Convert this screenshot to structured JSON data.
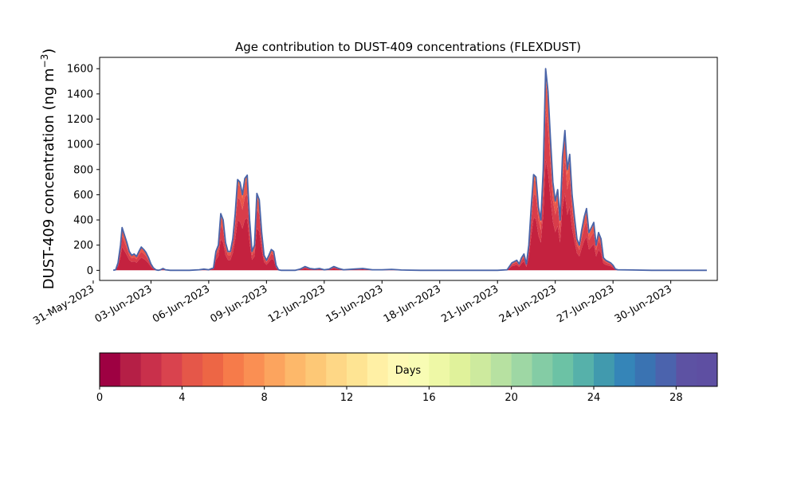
{
  "chart_data": {
    "type": "area",
    "title": "Age contribution to DUST-409 concentrations (FLEXDUST)",
    "ylabel": "DUST-409 concentration (ng m",
    "ylabel_sup": "−3",
    "ylabel_close": ")",
    "xlabel": "",
    "ylim": [
      -80,
      1690
    ],
    "xlim_days": [
      "2023-05-31T08:00",
      "2023-07-02T10:00"
    ],
    "y_ticks": [
      0,
      200,
      400,
      600,
      800,
      1000,
      1200,
      1400,
      1600
    ],
    "x_ticks": [
      "31-May-2023",
      "03-Jun-2023",
      "06-Jun-2023",
      "09-Jun-2023",
      "12-Jun-2023",
      "15-Jun-2023",
      "18-Jun-2023",
      "21-Jun-2023",
      "24-Jun-2023",
      "27-Jun-2023",
      "30-Jun-2023"
    ],
    "x_tick_dates": [
      "2023-05-31",
      "2023-06-03",
      "2023-06-06",
      "2023-06-09",
      "2023-06-12",
      "2023-06-15",
      "2023-06-18",
      "2023-06-21",
      "2023-06-24",
      "2023-06-27",
      "2023-06-30"
    ],
    "line_color": "#4a64a8",
    "series": [
      {
        "total": [
          [
            "2023-06-01T01:00",
            0
          ],
          [
            "2023-06-01T04:00",
            5
          ],
          [
            "2023-06-01T07:00",
            60
          ],
          [
            "2023-06-01T10:00",
            200
          ],
          [
            "2023-06-01T12:00",
            340
          ],
          [
            "2023-06-01T15:00",
            280
          ],
          [
            "2023-06-01T18:00",
            220
          ],
          [
            "2023-06-01T21:00",
            150
          ],
          [
            "2023-06-02T00:00",
            120
          ],
          [
            "2023-06-02T03:00",
            130
          ],
          [
            "2023-06-02T06:00",
            110
          ],
          [
            "2023-06-02T09:00",
            150
          ],
          [
            "2023-06-02T12:00",
            185
          ],
          [
            "2023-06-02T15:00",
            165
          ],
          [
            "2023-06-02T18:00",
            140
          ],
          [
            "2023-06-02T21:00",
            100
          ],
          [
            "2023-06-03T00:00",
            50
          ],
          [
            "2023-06-03T03:00",
            20
          ],
          [
            "2023-06-03T06:00",
            5
          ],
          [
            "2023-06-03T09:00",
            0
          ],
          [
            "2023-06-03T12:00",
            5
          ],
          [
            "2023-06-03T15:00",
            15
          ],
          [
            "2023-06-03T18:00",
            5
          ],
          [
            "2023-06-04T00:00",
            0
          ],
          [
            "2023-06-05T00:00",
            0
          ],
          [
            "2023-06-05T12:00",
            5
          ],
          [
            "2023-06-05T18:00",
            10
          ],
          [
            "2023-06-06T00:00",
            5
          ],
          [
            "2023-06-06T06:00",
            20
          ],
          [
            "2023-06-06T09:00",
            150
          ],
          [
            "2023-06-06T12:00",
            200
          ],
          [
            "2023-06-06T15:00",
            450
          ],
          [
            "2023-06-06T18:00",
            400
          ],
          [
            "2023-06-06T21:00",
            220
          ],
          [
            "2023-06-07T00:00",
            150
          ],
          [
            "2023-06-07T03:00",
            150
          ],
          [
            "2023-06-07T06:00",
            250
          ],
          [
            "2023-06-07T09:00",
            450
          ],
          [
            "2023-06-07T12:00",
            720
          ],
          [
            "2023-06-07T15:00",
            700
          ],
          [
            "2023-06-07T18:00",
            600
          ],
          [
            "2023-06-07T21:00",
            730
          ],
          [
            "2023-06-08T00:00",
            755
          ],
          [
            "2023-06-08T03:00",
            400
          ],
          [
            "2023-06-08T06:00",
            150
          ],
          [
            "2023-06-08T09:00",
            200
          ],
          [
            "2023-06-08T12:00",
            610
          ],
          [
            "2023-06-08T15:00",
            560
          ],
          [
            "2023-06-08T18:00",
            300
          ],
          [
            "2023-06-08T21:00",
            120
          ],
          [
            "2023-06-09T00:00",
            80
          ],
          [
            "2023-06-09T03:00",
            120
          ],
          [
            "2023-06-09T06:00",
            165
          ],
          [
            "2023-06-09T09:00",
            150
          ],
          [
            "2023-06-09T12:00",
            40
          ],
          [
            "2023-06-09T15:00",
            5
          ],
          [
            "2023-06-09T18:00",
            0
          ],
          [
            "2023-06-10T12:00",
            0
          ],
          [
            "2023-06-10T18:00",
            10
          ],
          [
            "2023-06-11T00:00",
            30
          ],
          [
            "2023-06-11T06:00",
            15
          ],
          [
            "2023-06-11T12:00",
            10
          ],
          [
            "2023-06-11T18:00",
            15
          ],
          [
            "2023-06-12T00:00",
            5
          ],
          [
            "2023-06-12T06:00",
            10
          ],
          [
            "2023-06-12T12:00",
            30
          ],
          [
            "2023-06-12T18:00",
            15
          ],
          [
            "2023-06-13T00:00",
            5
          ],
          [
            "2023-06-13T12:00",
            10
          ],
          [
            "2023-06-14T00:00",
            15
          ],
          [
            "2023-06-14T12:00",
            5
          ],
          [
            "2023-06-15T00:00",
            5
          ],
          [
            "2023-06-15T12:00",
            8
          ],
          [
            "2023-06-16T00:00",
            3
          ],
          [
            "2023-06-17T00:00",
            0
          ],
          [
            "2023-06-19T00:00",
            0
          ],
          [
            "2023-06-21T00:00",
            0
          ],
          [
            "2023-06-21T12:00",
            5
          ],
          [
            "2023-06-21T18:00",
            60
          ],
          [
            "2023-06-22T00:00",
            80
          ],
          [
            "2023-06-22T03:00",
            50
          ],
          [
            "2023-06-22T06:00",
            100
          ],
          [
            "2023-06-22T09:00",
            130
          ],
          [
            "2023-06-22T12:00",
            50
          ],
          [
            "2023-06-22T15:00",
            200
          ],
          [
            "2023-06-22T18:00",
            500
          ],
          [
            "2023-06-22T21:00",
            760
          ],
          [
            "2023-06-23T00:00",
            740
          ],
          [
            "2023-06-23T03:00",
            500
          ],
          [
            "2023-06-23T06:00",
            400
          ],
          [
            "2023-06-23T09:00",
            800
          ],
          [
            "2023-06-23T12:00",
            1600
          ],
          [
            "2023-06-23T15:00",
            1420
          ],
          [
            "2023-06-23T18:00",
            1050
          ],
          [
            "2023-06-23T21:00",
            700
          ],
          [
            "2023-06-24T00:00",
            550
          ],
          [
            "2023-06-24T03:00",
            640
          ],
          [
            "2023-06-24T06:00",
            400
          ],
          [
            "2023-06-24T09:00",
            900
          ],
          [
            "2023-06-24T12:00",
            1110
          ],
          [
            "2023-06-24T15:00",
            800
          ],
          [
            "2023-06-24T18:00",
            920
          ],
          [
            "2023-06-24T21:00",
            600
          ],
          [
            "2023-06-25T00:00",
            420
          ],
          [
            "2023-06-25T03:00",
            250
          ],
          [
            "2023-06-25T06:00",
            200
          ],
          [
            "2023-06-25T09:00",
            320
          ],
          [
            "2023-06-25T12:00",
            420
          ],
          [
            "2023-06-25T15:00",
            490
          ],
          [
            "2023-06-25T18:00",
            300
          ],
          [
            "2023-06-25T21:00",
            340
          ],
          [
            "2023-06-26T00:00",
            380
          ],
          [
            "2023-06-26T03:00",
            200
          ],
          [
            "2023-06-26T06:00",
            300
          ],
          [
            "2023-06-26T09:00",
            250
          ],
          [
            "2023-06-26T12:00",
            100
          ],
          [
            "2023-06-26T15:00",
            80
          ],
          [
            "2023-06-26T18:00",
            70
          ],
          [
            "2023-06-26T21:00",
            60
          ],
          [
            "2023-06-27T00:00",
            40
          ],
          [
            "2023-06-27T03:00",
            10
          ],
          [
            "2023-06-27T06:00",
            5
          ],
          [
            "2023-06-28T00:00",
            3
          ],
          [
            "2023-06-29T00:00",
            0
          ],
          [
            "2023-06-30T00:00",
            0
          ],
          [
            "2023-07-01T00:00",
            0
          ],
          [
            "2023-07-01T21:00",
            0
          ]
        ]
      }
    ],
    "age_fractions": [
      0.55,
      0.25,
      0.15,
      0.05
    ],
    "age_layer_colors": [
      "#c4223f",
      "#d83d4a",
      "#e9574a",
      "#f26f45"
    ],
    "colorbar": {
      "label": "Days",
      "range": [
        0,
        30
      ],
      "ticks": [
        0,
        4,
        8,
        12,
        16,
        20,
        24,
        28
      ],
      "colormap": "Spectral_r",
      "colors": [
        "#9e0142",
        "#b51f46",
        "#c9304b",
        "#d9434e",
        "#e55749",
        "#ed6645",
        "#f67b4a",
        "#fa8f53",
        "#fca45e",
        "#fdb86a",
        "#fdc876",
        "#fed786",
        "#fee493",
        "#fff0a5",
        "#fef9b5",
        "#f8fcb4",
        "#eef8a6",
        "#e0f29b",
        "#cdea9e",
        "#b7e1a1",
        "#9ed7a4",
        "#84cca5",
        "#6cc2a5",
        "#56b1aa",
        "#419aae",
        "#3585b8",
        "#3a73b2",
        "#4b63ad",
        "#5d52a3",
        "#5e4fa2"
      ]
    }
  }
}
